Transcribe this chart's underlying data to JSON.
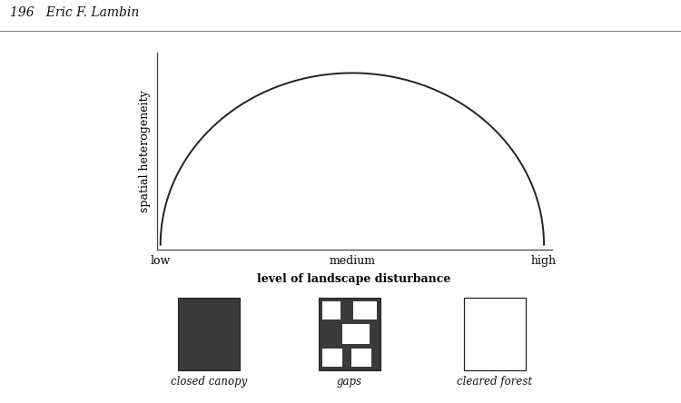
{
  "header_text": "196   Eric F. Lambin",
  "header_fontsize": 10,
  "ylabel": "spatial heterogeneity",
  "xlabel": "level of landscape disturbance",
  "xtick_labels": [
    "low",
    "medium",
    "high"
  ],
  "curve_color": "#222222",
  "curve_linewidth": 1.4,
  "axis_color": "#444444",
  "bg_color": "#ffffff",
  "header_line_color": "#888888",
  "box1_label": "closed canopy",
  "box2_label": "gaps",
  "box3_label": "cleared forest",
  "box_dark_color": "#3a3a3a",
  "box_white_color": "#ffffff",
  "box_border_color": "#222222",
  "label_fontsize": 8.5,
  "xlabel_fontsize": 9,
  "ylabel_fontsize": 9
}
